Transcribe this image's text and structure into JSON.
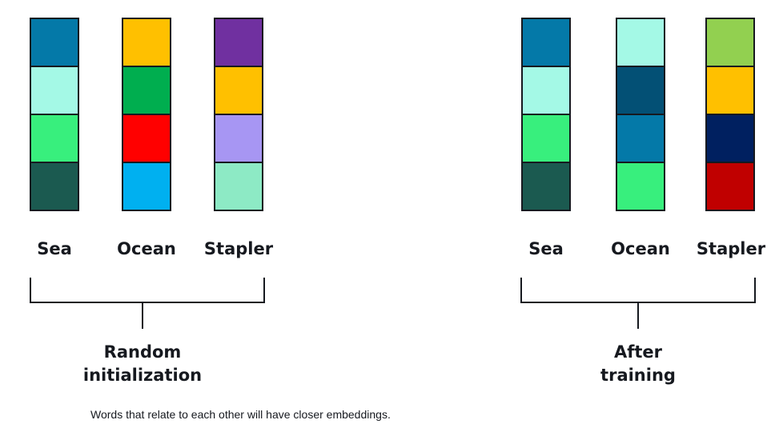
{
  "panels": [
    {
      "label_line1": "Random",
      "label_line2": "initialization",
      "words": [
        {
          "label": "Sea",
          "cells": [
            "#0479a8",
            "#a4f9e6",
            "#38ef7d",
            "#1b5a50"
          ]
        },
        {
          "label": "Ocean",
          "cells": [
            "#ffc000",
            "#00ae4f",
            "#ff0000",
            "#00b0f0"
          ]
        },
        {
          "label": "Stapler",
          "cells": [
            "#7030a0",
            "#ffc000",
            "#a796f3",
            "#8deac5"
          ]
        }
      ]
    },
    {
      "label_line1": "After",
      "label_line2": "training",
      "words": [
        {
          "label": "Sea",
          "cells": [
            "#0479a8",
            "#a4f9e6",
            "#38ef7d",
            "#1b5a50"
          ]
        },
        {
          "label": "Ocean",
          "cells": [
            "#a4f9e6",
            "#035075",
            "#0479a8",
            "#38ef7d"
          ]
        },
        {
          "label": "Stapler",
          "cells": [
            "#92d050",
            "#ffc000",
            "#002060",
            "#c00000"
          ]
        }
      ]
    }
  ],
  "caption": "Words that relate to each other will have closer embeddings.",
  "colors": {
    "border": "#16191f",
    "text": "#16191f",
    "background": "#ffffff"
  }
}
